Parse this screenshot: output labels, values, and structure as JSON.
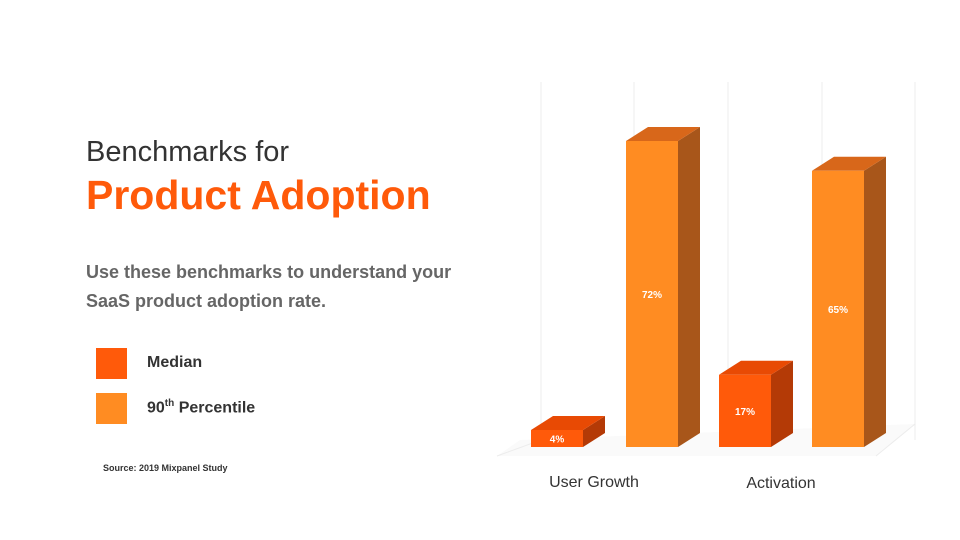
{
  "heading": {
    "line1": "Benchmarks for",
    "line2": "Product Adoption",
    "subtitle": "Use these benchmarks to understand your SaaS product adoption rate."
  },
  "legend": [
    {
      "label": "Median",
      "sup": "",
      "color": "#ff5a0a"
    },
    {
      "label": "90",
      "sup": "th",
      "suffix": " Percentile",
      "color": "#ff8c22"
    }
  ],
  "source": "Source: 2019 Mixpanel Study",
  "chart_data": {
    "type": "bar",
    "categories": [
      "User Growth",
      "Activation"
    ],
    "series": [
      {
        "name": "Median",
        "values": [
          4,
          17
        ],
        "labels": [
          "4%",
          "17%"
        ]
      },
      {
        "name": "90th Percentile",
        "values": [
          72,
          65
        ],
        "labels": [
          "72%",
          "65%"
        ]
      }
    ],
    "ylim": [
      0,
      80
    ],
    "grid": true,
    "legend": "left",
    "colors": {
      "median_front": "#ff5a0a",
      "median_top": "#e84a04",
      "median_side": "#b43a06",
      "p90_front": "#ff8c22",
      "p90_top": "#d8671a",
      "p90_side": "#a8561a"
    }
  }
}
